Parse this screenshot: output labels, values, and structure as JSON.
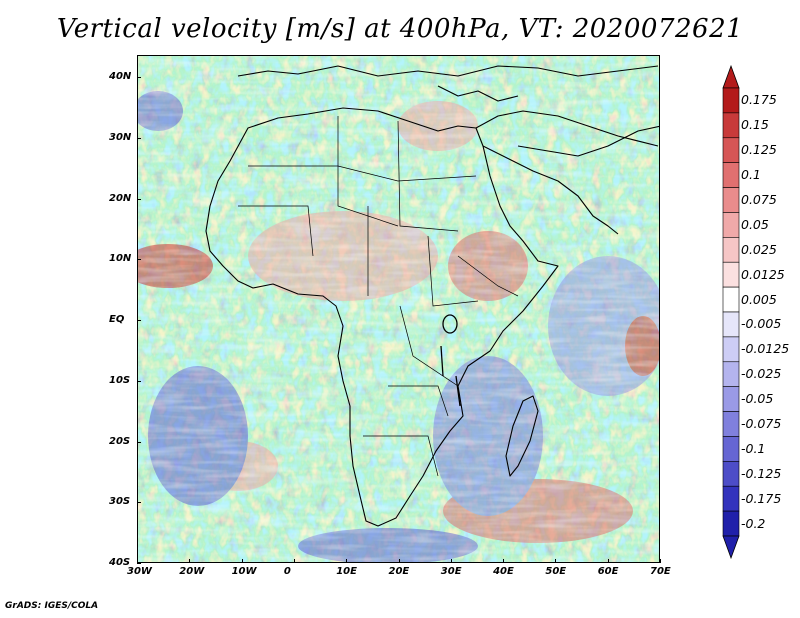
{
  "title": "Vertical velocity [m/s] at 400hPa, VT: 2020072621",
  "footer": "GrADS: IGES/COLA",
  "map": {
    "lon_labels": [
      "30W",
      "20W",
      "10W",
      "0",
      "10E",
      "20E",
      "30E",
      "40E",
      "50E",
      "60E",
      "70E"
    ],
    "lat_labels": [
      "40N",
      "30N",
      "20N",
      "10N",
      "EQ",
      "10S",
      "20S",
      "30S",
      "40S"
    ]
  },
  "colorbar": {
    "labels": [
      "0.175",
      "0.15",
      "0.125",
      "0.1",
      "0.075",
      "0.05",
      "0.025",
      "0.0125",
      "0.005",
      "-0.005",
      "-0.0125",
      "-0.025",
      "-0.05",
      "-0.075",
      "-0.1",
      "-0.125",
      "-0.175",
      "-0.2"
    ],
    "colors": [
      "#b31b1b",
      "#c83a3a",
      "#d65656",
      "#e07070",
      "#e98c8c",
      "#f0a9a9",
      "#f6c6c6",
      "#fbe0e0",
      "#ffffff",
      "#e6e6fa",
      "#cdcdf5",
      "#b4b4ee",
      "#9a9ae6",
      "#8080dd",
      "#6666d3",
      "#4d4dc8",
      "#3333bd",
      "#2020aa"
    ]
  }
}
